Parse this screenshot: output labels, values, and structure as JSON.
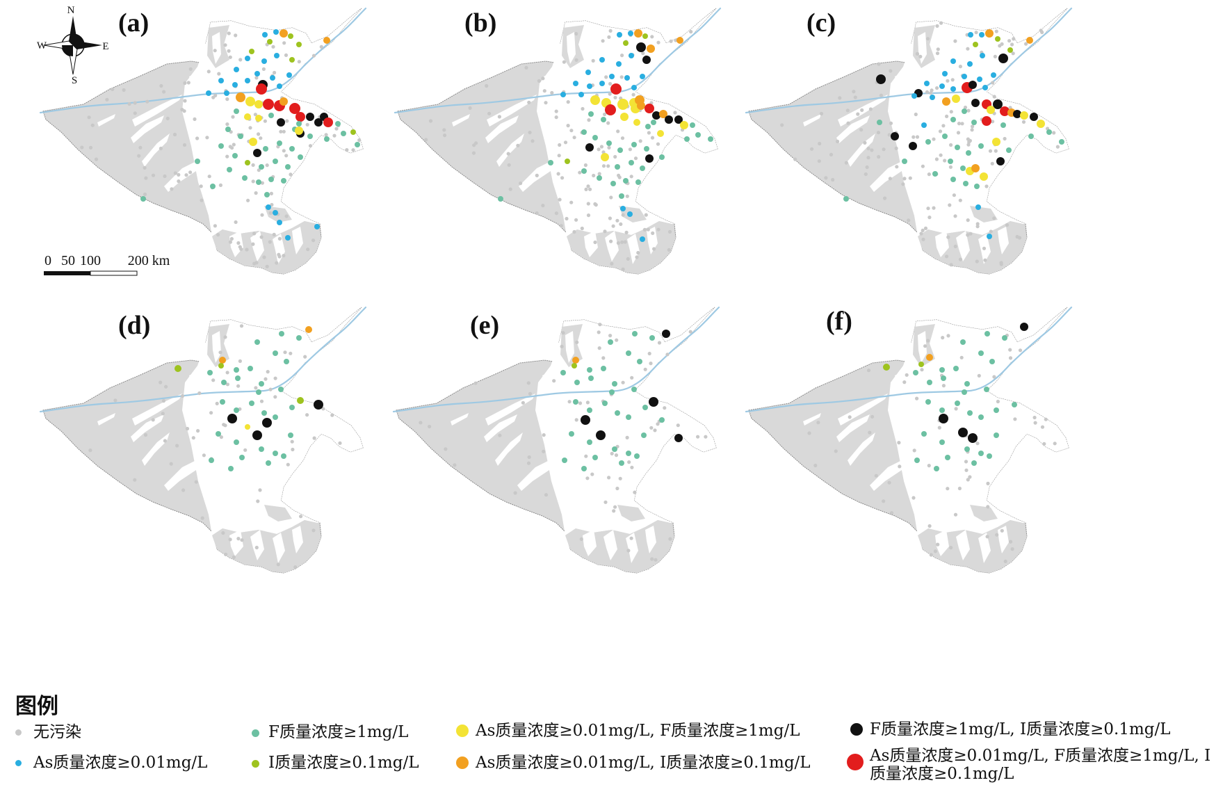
{
  "panel_labels": [
    "(a)",
    "(b)",
    "(c)",
    "(d)",
    "(e)",
    "(f)"
  ],
  "compass": {
    "north": "N",
    "south": "S",
    "east": "E",
    "west": "W"
  },
  "scale_bar": {
    "ticks": [
      "0",
      "50",
      "100",
      "200 km"
    ]
  },
  "colors": {
    "land": "#d9d9d9",
    "valley": "#ffffff",
    "river": "#9ec9e3",
    "boundary": "#8a8a8a",
    "none": "#c8c8c8",
    "as": "#29aee0",
    "f": "#6cc0a2",
    "i": "#9ec31f",
    "as_f": "#f3e335",
    "as_i": "#f2a020",
    "f_i": "#111111",
    "as_f_i": "#e21d1d"
  },
  "legend": {
    "title": "图例",
    "items": [
      {
        "key": "none",
        "label": "无污染"
      },
      {
        "key": "as",
        "label": "As质量浓度≥0.01mg/L"
      },
      {
        "key": "f",
        "label": "F质量浓度≥1mg/L"
      },
      {
        "key": "i",
        "label": "I质量浓度≥0.1mg/L"
      },
      {
        "key": "as_f",
        "label": "As质量浓度≥0.01mg/L, F质量浓度≥1mg/L"
      },
      {
        "key": "as_i",
        "label": "As质量浓度≥0.01mg/L, I质量浓度≥0.1mg/L"
      },
      {
        "key": "f_i",
        "label": "F质量浓度≥1mg/L, I质量浓度≥0.1mg/L"
      },
      {
        "key": "as_f_i",
        "label": "As质量浓度≥0.01mg/L, F质量浓度≥1mg/L, I质量浓度≥0.1mg/L"
      }
    ]
  }
}
